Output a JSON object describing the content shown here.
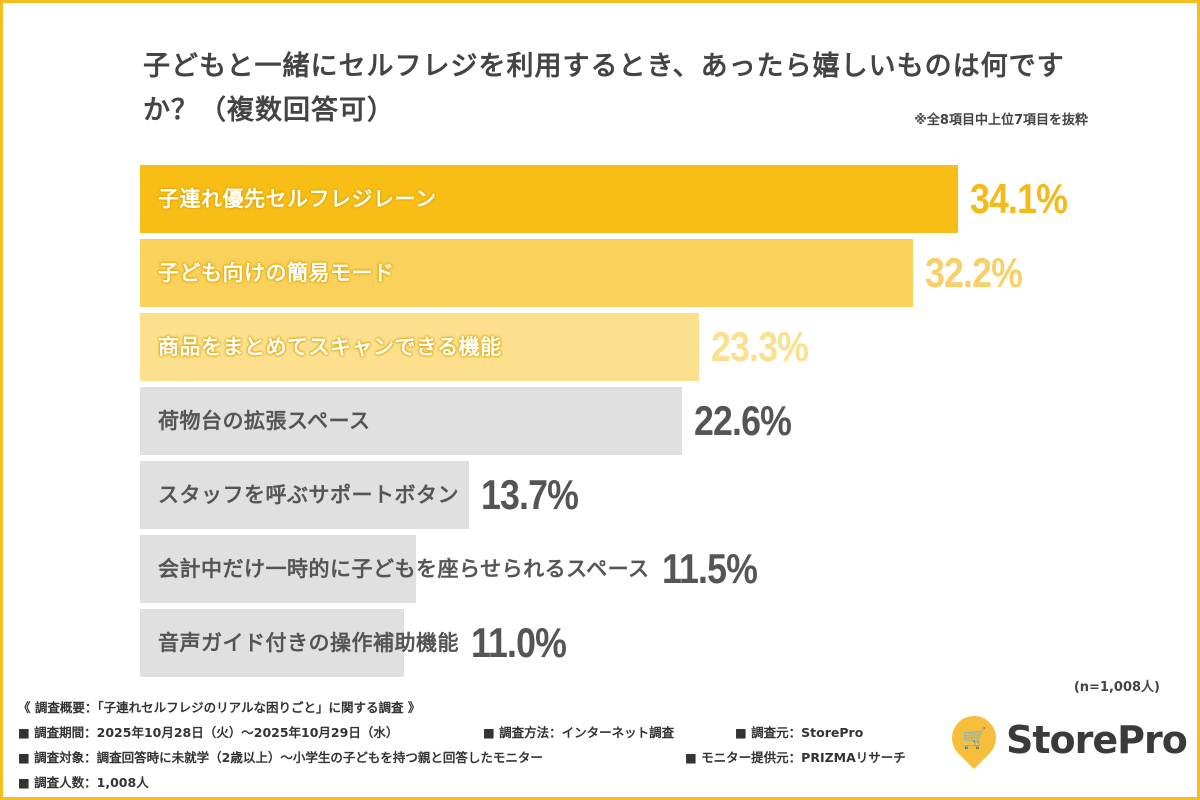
{
  "title": "子どもと一緒にセルフレジを利用するとき、あったら嬉しいものは何ですか？（複数回答可）",
  "note": "※全8項目中上位7項目を抜粋",
  "sample": "(n=1,008人)",
  "chart_data": {
    "type": "bar",
    "orientation": "horizontal",
    "title": "子どもと一緒にセルフレジを利用するとき、あったら嬉しいものは何ですか？（複数回答可）",
    "categories": [
      "子連れ優先セルフレジレーン",
      "子ども向けの簡易モード",
      "商品をまとめてスキャンできる機能",
      "荷物台の拡張スペース",
      "スタッフを呼ぶサポートボタン",
      "会計中だけ一時的に子どもを座らせられるスペース",
      "音声ガイド付きの操作補助機能"
    ],
    "values": [
      34.1,
      32.2,
      23.3,
      22.6,
      13.7,
      11.5,
      11.0
    ],
    "value_labels": [
      "34.1%",
      "32.2%",
      "23.3%",
      "22.6%",
      "13.7%",
      "11.5%",
      "11.0%"
    ],
    "unit": "%",
    "bar_colors": [
      "#F9BE16",
      "#FAD15A",
      "#FCE08E",
      "#E0E0E0",
      "#E0E0E0",
      "#E0E0E0",
      "#E0E0E0"
    ],
    "value_colors": [
      "#F5B918",
      "#F7D06A",
      "#FBE08F",
      "#555555",
      "#555555",
      "#555555",
      "#555555"
    ],
    "grid": false
  },
  "footer": {
    "heading": "《 調査概要：「子連れセルフレジのリアルな困りごと」に関する調査 》",
    "period": "■ 調査期間：2025年10月28日（火）～2025年10月29日（水）",
    "method": "■ 調査方法：インターネット調査",
    "source": "■ 調査元：StorePro",
    "target": "■ 調査対象：調査回答時に未就学（2歳以上）～小学生の子どもを持つ親と回答したモニター",
    "provider": "■ モニター提供元：PRIZMAリサーチ",
    "count": "■ 調査人数：1,008人"
  },
  "logo": {
    "text": "StorePro",
    "icon": "shopping-cart-pin-icon",
    "color": "#F6BE3A"
  },
  "border_color": "#F5BE1E"
}
